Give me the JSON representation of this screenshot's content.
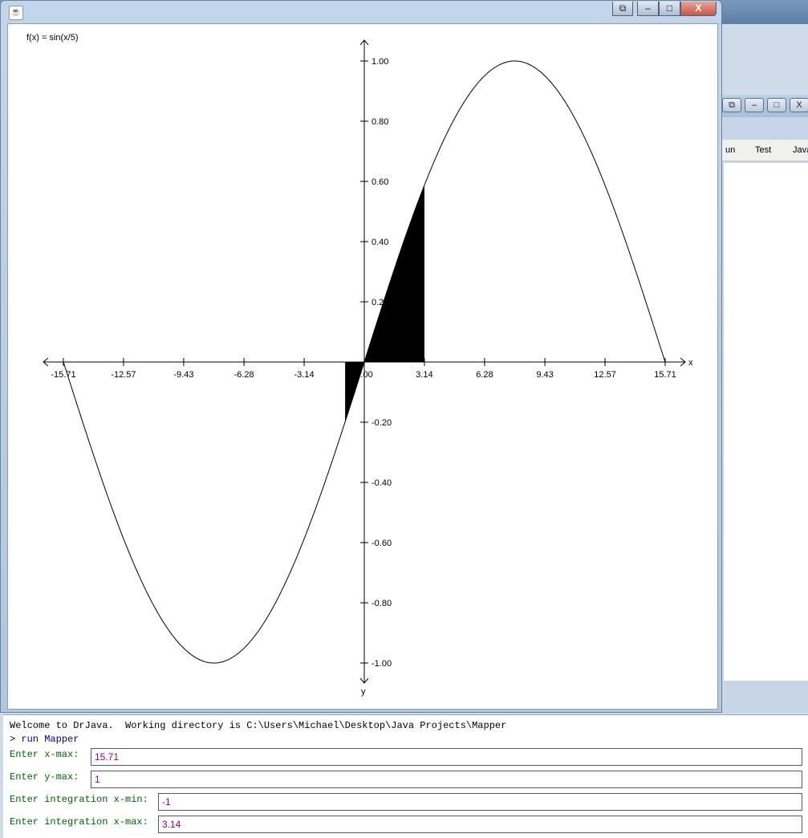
{
  "window": {
    "minimize": "‒",
    "maximize": "□",
    "close": "X",
    "restore_icon": "restore-icon"
  },
  "background_window": {
    "menu": [
      "un",
      "Test",
      "Java"
    ]
  },
  "graph": {
    "function_label": "f(x) = sin(x/5)",
    "x_axis_letter": "x",
    "y_axis_letter": "y"
  },
  "chart_data": {
    "type": "line",
    "function": "sin(x/5)",
    "title": "f(x) = sin(x/5)",
    "xlabel": "x",
    "ylabel": "y",
    "xlim": [
      -15.71,
      15.71
    ],
    "ylim": [
      -1,
      1
    ],
    "x_ticks": [
      "-15.71",
      "-12.57",
      "-9.43",
      "-6.28",
      "-3.14",
      "0.00",
      "3.14",
      "6.28",
      "9.43",
      "12.57",
      "15.71"
    ],
    "y_ticks": [
      "1.00",
      "0.80",
      "0.60",
      "0.40",
      "0.2",
      "-0.20",
      "-0.40",
      "-0.60",
      "-0.80",
      "-1.00"
    ],
    "shaded_region": {
      "x_min": -1,
      "x_max": 3.14
    },
    "grid": false
  },
  "console": {
    "welcome": "Welcome to DrJava.  Working directory is C:\\Users\\Michael\\Desktop\\Java Projects\\Mapper",
    "prompt_symbol": ">",
    "command": "run Mapper",
    "prompts": [
      {
        "label": "Enter x-max:",
        "value": "15.71"
      },
      {
        "label": "Enter y-max:",
        "value": "1"
      },
      {
        "label": "Enter integration x-min:",
        "value": "-1"
      },
      {
        "label": "Enter integration x-max:",
        "value": "3.14"
      }
    ]
  },
  "colors": {
    "prompt_label": "#006400",
    "input_text": "#8b008b",
    "command": "#00008b"
  }
}
